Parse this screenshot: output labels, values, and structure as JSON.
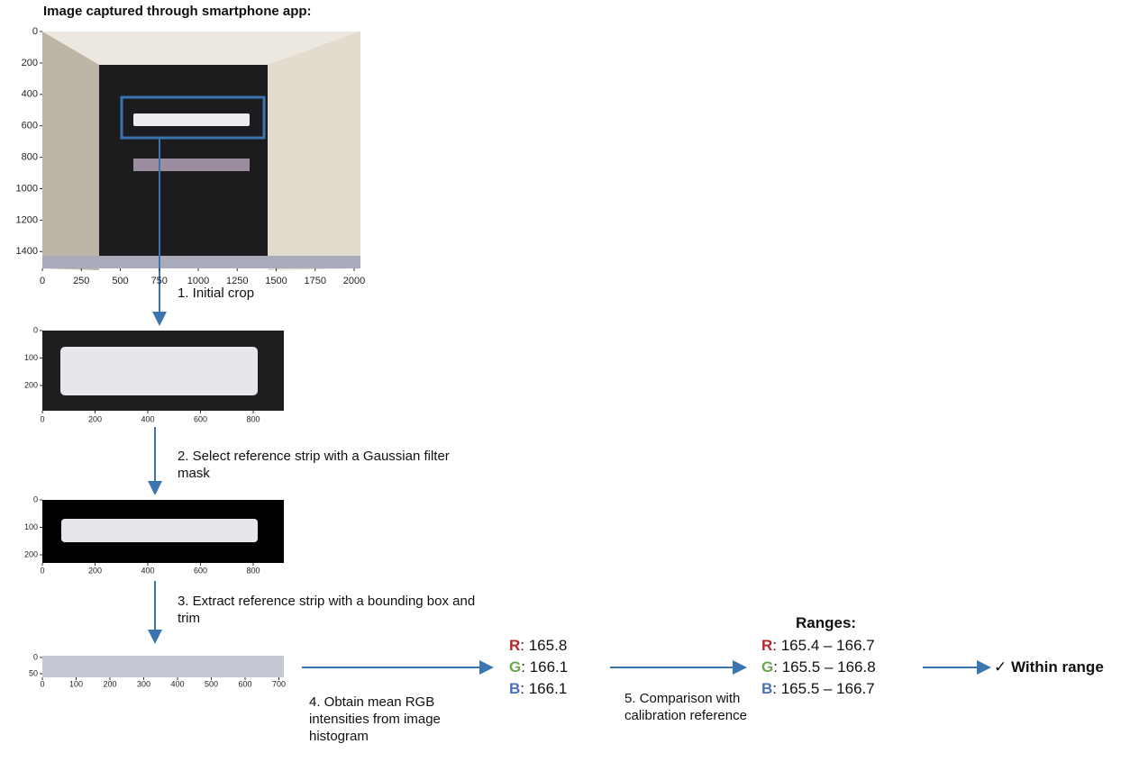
{
  "title": "Image captured through smartphone app:",
  "images": [
    {
      "xticks": [
        0,
        250,
        500,
        750,
        1000,
        1250,
        1500,
        1750,
        2000
      ],
      "yticks": [
        0,
        200,
        400,
        600,
        800,
        1000,
        1200,
        1400
      ]
    },
    {
      "xticks": [
        0,
        200,
        400,
        600,
        800
      ],
      "yticks": [
        0,
        100,
        200
      ]
    },
    {
      "xticks": [
        0,
        200,
        400,
        600,
        800
      ],
      "yticks": [
        0,
        100,
        200
      ]
    },
    {
      "xticks": [
        0,
        100,
        200,
        300,
        400,
        500,
        600,
        700
      ],
      "yticks": [
        0,
        50
      ]
    }
  ],
  "steps": [
    "1. Initial crop",
    "2. Select reference strip with a Gaussian filter mask",
    "3. Extract reference strip with a bounding box and trim",
    "4. Obtain mean RGB intensities from image histogram",
    "5. Comparison with calibration reference"
  ],
  "measured": [
    {
      "channel": "R",
      "text": ": 165.8"
    },
    {
      "channel": "G",
      "text": ": 166.1"
    },
    {
      "channel": "B",
      "text": ": 166.1"
    }
  ],
  "ranges_title": "Ranges:",
  "ranges": [
    {
      "channel": "R",
      "text": ": 165.4 – 166.7"
    },
    {
      "channel": "G",
      "text": ": 165.5 – 166.8"
    },
    {
      "channel": "B",
      "text": ": 165.5 – 166.7"
    }
  ],
  "check": "✓",
  "result": "Within range"
}
